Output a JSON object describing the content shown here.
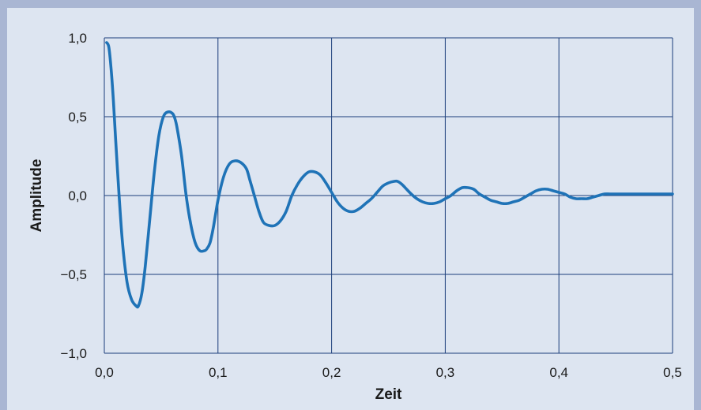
{
  "chart_data": {
    "type": "line",
    "xlabel": "Zeit",
    "ylabel": "Amplitude",
    "xlim": [
      0,
      0.5
    ],
    "ylim": [
      -1.0,
      1.0
    ],
    "x_ticks": [
      "0,0",
      "0,1",
      "0,2",
      "0,3",
      "0,4",
      "0,5"
    ],
    "y_ticks": [
      "1,0",
      "0,5",
      "0,0",
      "−0,5",
      "−1,0"
    ],
    "grid": true,
    "colors": {
      "line": "#1f73b7",
      "grid": "#1b3d7a",
      "plot_background": "#dde5f1",
      "page_background": "#a9b6d3"
    },
    "series": [
      {
        "x": [
          0.002,
          0.004,
          0.006,
          0.008,
          0.01,
          0.013,
          0.016,
          0.02,
          0.024,
          0.028,
          0.03,
          0.033,
          0.036,
          0.04,
          0.044,
          0.048,
          0.052,
          0.056,
          0.06,
          0.062,
          0.064,
          0.068,
          0.072,
          0.076,
          0.08,
          0.084,
          0.088,
          0.09,
          0.093,
          0.096,
          0.1,
          0.105,
          0.11,
          0.115,
          0.12,
          0.125,
          0.128,
          0.132,
          0.136,
          0.14,
          0.145,
          0.15,
          0.155,
          0.16,
          0.165,
          0.17,
          0.175,
          0.18,
          0.185,
          0.19,
          0.195,
          0.2,
          0.205,
          0.21,
          0.215,
          0.22,
          0.225,
          0.23,
          0.235,
          0.24,
          0.245,
          0.25,
          0.255,
          0.258,
          0.262,
          0.266,
          0.27,
          0.275,
          0.28,
          0.285,
          0.29,
          0.295,
          0.3,
          0.305,
          0.31,
          0.315,
          0.32,
          0.325,
          0.33,
          0.335,
          0.34,
          0.345,
          0.35,
          0.355,
          0.36,
          0.365,
          0.37,
          0.375,
          0.38,
          0.385,
          0.39,
          0.395,
          0.4,
          0.405,
          0.41,
          0.415,
          0.42,
          0.425,
          0.43,
          0.435,
          0.44,
          0.445,
          0.45,
          0.46,
          0.47,
          0.48,
          0.49,
          0.5
        ],
        "y": [
          0.97,
          0.94,
          0.8,
          0.6,
          0.35,
          0.0,
          -0.3,
          -0.55,
          -0.66,
          -0.7,
          -0.7,
          -0.62,
          -0.45,
          -0.15,
          0.15,
          0.38,
          0.5,
          0.53,
          0.52,
          0.49,
          0.43,
          0.25,
          0.0,
          -0.18,
          -0.3,
          -0.35,
          -0.35,
          -0.34,
          -0.3,
          -0.2,
          -0.03,
          0.12,
          0.2,
          0.22,
          0.21,
          0.17,
          0.1,
          0.0,
          -0.1,
          -0.17,
          -0.19,
          -0.19,
          -0.16,
          -0.1,
          0.0,
          0.07,
          0.12,
          0.15,
          0.15,
          0.13,
          0.08,
          0.02,
          -0.04,
          -0.08,
          -0.1,
          -0.1,
          -0.08,
          -0.05,
          -0.02,
          0.02,
          0.06,
          0.08,
          0.09,
          0.09,
          0.07,
          0.04,
          0.01,
          -0.02,
          -0.04,
          -0.05,
          -0.05,
          -0.04,
          -0.02,
          0.0,
          0.03,
          0.05,
          0.05,
          0.04,
          0.01,
          -0.01,
          -0.03,
          -0.04,
          -0.05,
          -0.05,
          -0.04,
          -0.03,
          -0.01,
          0.01,
          0.03,
          0.04,
          0.04,
          0.03,
          0.02,
          0.01,
          -0.01,
          -0.02,
          -0.02,
          -0.02,
          -0.01,
          0.0,
          0.01,
          0.01,
          0.01,
          0.01,
          0.01,
          0.01,
          0.01,
          0.01
        ]
      }
    ]
  }
}
